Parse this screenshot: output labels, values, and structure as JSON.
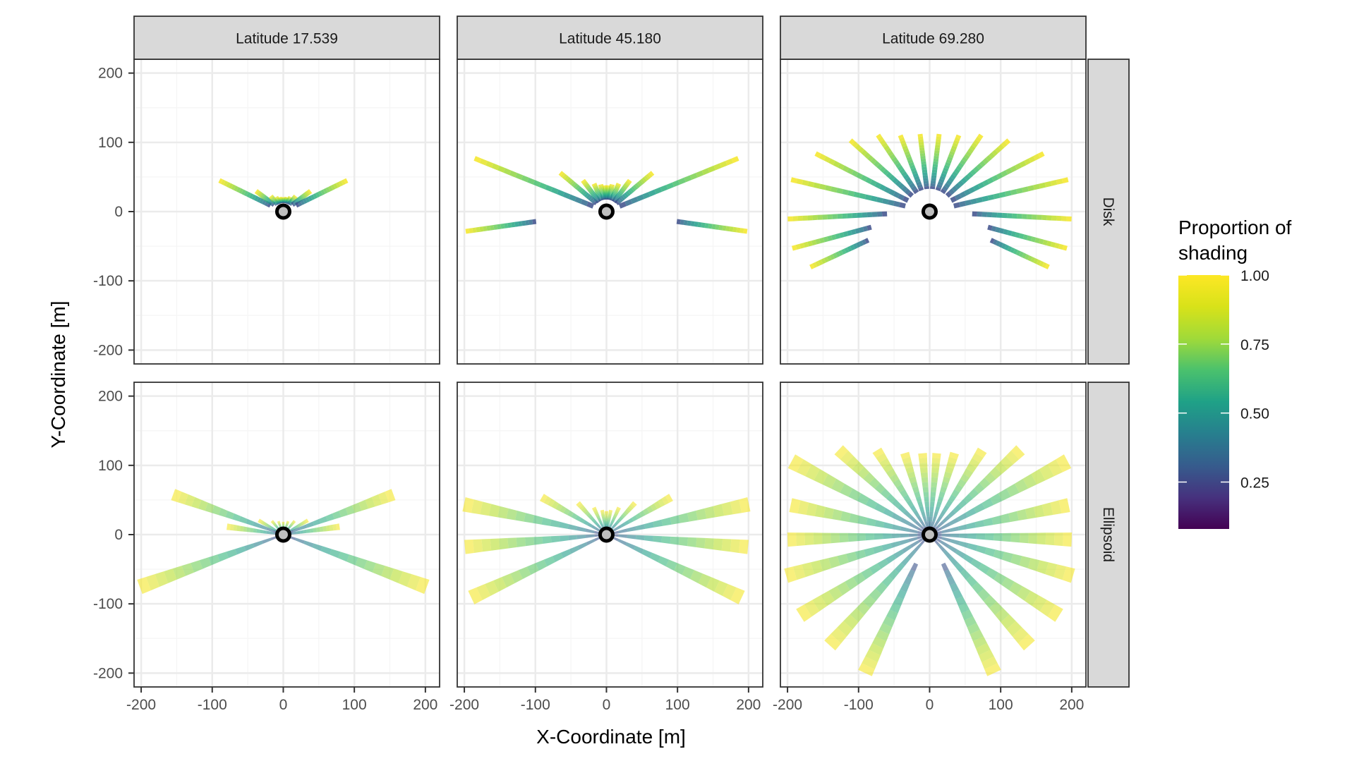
{
  "chart_data": {
    "type": "scatter",
    "facet_columns": [
      "Latitude 17.539",
      "Latitude 45.180",
      "Latitude 69.280"
    ],
    "facet_rows": [
      "Disk",
      "Ellipsoid"
    ],
    "xlabel": "X-Coordinate [m]",
    "ylabel": "Y-Coordinate [m]",
    "xlim": [
      -210,
      220
    ],
    "ylim": [
      -220,
      220
    ],
    "x_ticks": [
      "-200",
      "-100",
      "0",
      "100",
      "200"
    ],
    "y_ticks": [
      "-200",
      "-100",
      "0",
      "100",
      "200"
    ],
    "grid": true,
    "legend": {
      "title_lines": [
        "Proportion of",
        "shading"
      ],
      "ticks": [
        "0.25",
        "0.50",
        "0.75",
        "1.00"
      ],
      "range": [
        0.08,
        1.0
      ],
      "colormap": "viridis",
      "position": "right"
    },
    "origin_marker": {
      "x": 0,
      "y": 0
    },
    "panels": {
      "Latitude 17.539|Disk": {
        "shape": "disk",
        "rays": [
          {
            "a": 154,
            "r1": 20,
            "r2": 100
          },
          {
            "a": 143,
            "r1": 16,
            "r2": 48
          },
          {
            "a": 129,
            "r1": 13,
            "r2": 28
          },
          {
            "a": 117,
            "r1": 12,
            "r2": 23
          },
          {
            "a": 105,
            "r1": 12,
            "r2": 21
          },
          {
            "a": 96,
            "r1": 12,
            "r2": 20
          },
          {
            "a": 84,
            "r1": 12,
            "r2": 20
          },
          {
            "a": 75,
            "r1": 12,
            "r2": 21
          },
          {
            "a": 63,
            "r1": 12,
            "r2": 23
          },
          {
            "a": 51,
            "r1": 13,
            "r2": 28
          },
          {
            "a": 37,
            "r1": 16,
            "r2": 48
          },
          {
            "a": 26,
            "r1": 20,
            "r2": 100
          }
        ]
      },
      "Latitude 45.180|Disk": {
        "shape": "disk",
        "rays": [
          {
            "a": 188,
            "r1": 100,
            "r2": 200
          },
          {
            "a": 158,
            "r1": 20,
            "r2": 200
          },
          {
            "a": 140,
            "r1": 18,
            "r2": 85
          },
          {
            "a": 127,
            "r1": 17,
            "r2": 55
          },
          {
            "a": 114,
            "r1": 17,
            "r2": 43
          },
          {
            "a": 102,
            "r1": 17,
            "r2": 39
          },
          {
            "a": 93,
            "r1": 17,
            "r2": 37
          },
          {
            "a": 87,
            "r1": 17,
            "r2": 37
          },
          {
            "a": 78,
            "r1": 17,
            "r2": 39
          },
          {
            "a": 66,
            "r1": 17,
            "r2": 43
          },
          {
            "a": 53,
            "r1": 17,
            "r2": 55
          },
          {
            "a": 40,
            "r1": 18,
            "r2": 85
          },
          {
            "a": 22,
            "r1": 20,
            "r2": 200
          },
          {
            "a": -8,
            "r1": 100,
            "r2": 200
          }
        ]
      },
      "Latitude 69.280|Disk": {
        "shape": "disk",
        "rays": [
          {
            "a": 205,
            "r1": 95,
            "r2": 185
          },
          {
            "a": 195,
            "r1": 85,
            "r2": 200
          },
          {
            "a": 183,
            "r1": 60,
            "r2": 200
          },
          {
            "a": 167,
            "r1": 35,
            "r2": 200
          },
          {
            "a": 153,
            "r1": 34,
            "r2": 180
          },
          {
            "a": 138,
            "r1": 33,
            "r2": 150
          },
          {
            "a": 124,
            "r1": 32,
            "r2": 130
          },
          {
            "a": 111,
            "r1": 32,
            "r2": 115
          },
          {
            "a": 97,
            "r1": 32,
            "r2": 110
          },
          {
            "a": 83,
            "r1": 32,
            "r2": 110
          },
          {
            "a": 69,
            "r1": 32,
            "r2": 115
          },
          {
            "a": 56,
            "r1": 32,
            "r2": 130
          },
          {
            "a": 42,
            "r1": 33,
            "r2": 150
          },
          {
            "a": 27,
            "r1": 34,
            "r2": 180
          },
          {
            "a": 13,
            "r1": 35,
            "r2": 200
          },
          {
            "a": -3,
            "r1": 60,
            "r2": 200
          },
          {
            "a": -15,
            "r1": 85,
            "r2": 200
          },
          {
            "a": -25,
            "r1": 95,
            "r2": 185
          }
        ]
      },
      "Latitude 17.539|Ellipsoid": {
        "shape": "ellipsoid",
        "rays": [
          {
            "a": 160,
            "r1": 5,
            "r2": 165
          },
          {
            "a": 200,
            "r1": 5,
            "r2": 215
          },
          {
            "a": 172,
            "r1": 5,
            "r2": 80
          },
          {
            "a": 150,
            "r1": 5,
            "r2": 40
          },
          {
            "a": 130,
            "r1": 5,
            "r2": 25
          },
          {
            "a": 110,
            "r1": 5,
            "r2": 20
          },
          {
            "a": 90,
            "r1": 5,
            "r2": 18
          },
          {
            "a": 70,
            "r1": 5,
            "r2": 20
          },
          {
            "a": 50,
            "r1": 5,
            "r2": 25
          },
          {
            "a": 30,
            "r1": 5,
            "r2": 40
          },
          {
            "a": 8,
            "r1": 5,
            "r2": 80
          },
          {
            "a": 20,
            "r1": 5,
            "r2": 165
          },
          {
            "a": -20,
            "r1": 5,
            "r2": 215
          }
        ]
      },
      "Latitude 45.180|Ellipsoid": {
        "shape": "ellipsoid",
        "rays": [
          {
            "a": 168,
            "r1": 5,
            "r2": 205
          },
          {
            "a": 185,
            "r1": 5,
            "r2": 200
          },
          {
            "a": 205,
            "r1": 5,
            "r2": 210
          },
          {
            "a": 150,
            "r1": 5,
            "r2": 105
          },
          {
            "a": 132,
            "r1": 5,
            "r2": 60
          },
          {
            "a": 115,
            "r1": 5,
            "r2": 42
          },
          {
            "a": 100,
            "r1": 5,
            "r2": 35
          },
          {
            "a": 90,
            "r1": 5,
            "r2": 33
          },
          {
            "a": 80,
            "r1": 5,
            "r2": 35
          },
          {
            "a": 65,
            "r1": 5,
            "r2": 42
          },
          {
            "a": 48,
            "r1": 5,
            "r2": 60
          },
          {
            "a": 30,
            "r1": 5,
            "r2": 105
          },
          {
            "a": 12,
            "r1": 5,
            "r2": 205
          },
          {
            "a": -5,
            "r1": 5,
            "r2": 200
          },
          {
            "a": -25,
            "r1": 5,
            "r2": 210
          }
        ]
      },
      "Latitude 69.280|Ellipsoid": {
        "shape": "ellipsoid",
        "rays": [
          {
            "a": 152,
            "r1": 5,
            "r2": 220
          },
          {
            "a": 168,
            "r1": 5,
            "r2": 200
          },
          {
            "a": 182,
            "r1": 5,
            "r2": 200
          },
          {
            "a": 196,
            "r1": 5,
            "r2": 210
          },
          {
            "a": 212,
            "r1": 5,
            "r2": 215
          },
          {
            "a": 228,
            "r1": 5,
            "r2": 210
          },
          {
            "a": 245,
            "r1": 45,
            "r2": 215
          },
          {
            "a": 137,
            "r1": 5,
            "r2": 175
          },
          {
            "a": 122,
            "r1": 5,
            "r2": 140
          },
          {
            "a": 107,
            "r1": 5,
            "r2": 120
          },
          {
            "a": 95,
            "r1": 5,
            "r2": 115
          },
          {
            "a": 85,
            "r1": 5,
            "r2": 115
          },
          {
            "a": 73,
            "r1": 5,
            "r2": 120
          },
          {
            "a": 58,
            "r1": 5,
            "r2": 140
          },
          {
            "a": 43,
            "r1": 5,
            "r2": 175
          },
          {
            "a": 28,
            "r1": 5,
            "r2": 220
          },
          {
            "a": 12,
            "r1": 5,
            "r2": 200
          },
          {
            "a": -2,
            "r1": 5,
            "r2": 200
          },
          {
            "a": -16,
            "r1": 5,
            "r2": 210
          },
          {
            "a": -32,
            "r1": 5,
            "r2": 215
          },
          {
            "a": -48,
            "r1": 5,
            "r2": 210
          },
          {
            "a": -65,
            "r1": 45,
            "r2": 215
          }
        ]
      }
    }
  },
  "colors": {
    "strip_fill": "#d9d9d9",
    "panel_border": "#333333",
    "grid_major": "#ebebeb",
    "grid_minor": "#f5f5f5",
    "origin_ring": "#000000",
    "origin_fill": "#bfbfbf"
  }
}
